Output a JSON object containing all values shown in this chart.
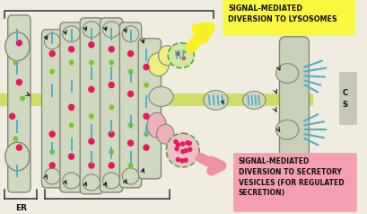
{
  "bg_color": "#f0ece0",
  "yellow_box_color": "#f8f840",
  "pink_box_color": "#f5a0b0",
  "yellow_box_text": "SIGNAL-MEDIATED\nDIVERSION TO LYSOSOMES",
  "pink_box_text": "SIGNAL-MEDIATED\nDIVERSION TO SECRETORY\nVESICLES (FOR REGULATED\nSECRETION)",
  "right_label_cs": "C\nS",
  "er_label": "ER",
  "cell_color": "#d0d8c0",
  "cell_ec": "#808878",
  "stripe_color": "#c8dc50",
  "dot_pink": "#e8185a",
  "dot_green": "#78c828",
  "dash_cyan": "#50b0c8",
  "arrow_color": "#181818",
  "arrow_yellow_color": "#f8f020",
  "arrow_pink_color": "#f090a0",
  "bracket_color": "#303030",
  "pm_color": "#c8d0b8",
  "pm_ec": "#808878",
  "tgn_yellow_color": "#f0f080",
  "tgn_pink_color": "#f0b0b8",
  "lyso_ves_color": "#d0e8a0",
  "lyso_ves_ec": "#50a838",
  "sec_ves_color": "#f0c0c8",
  "sec_ves_ec": "#50a838"
}
